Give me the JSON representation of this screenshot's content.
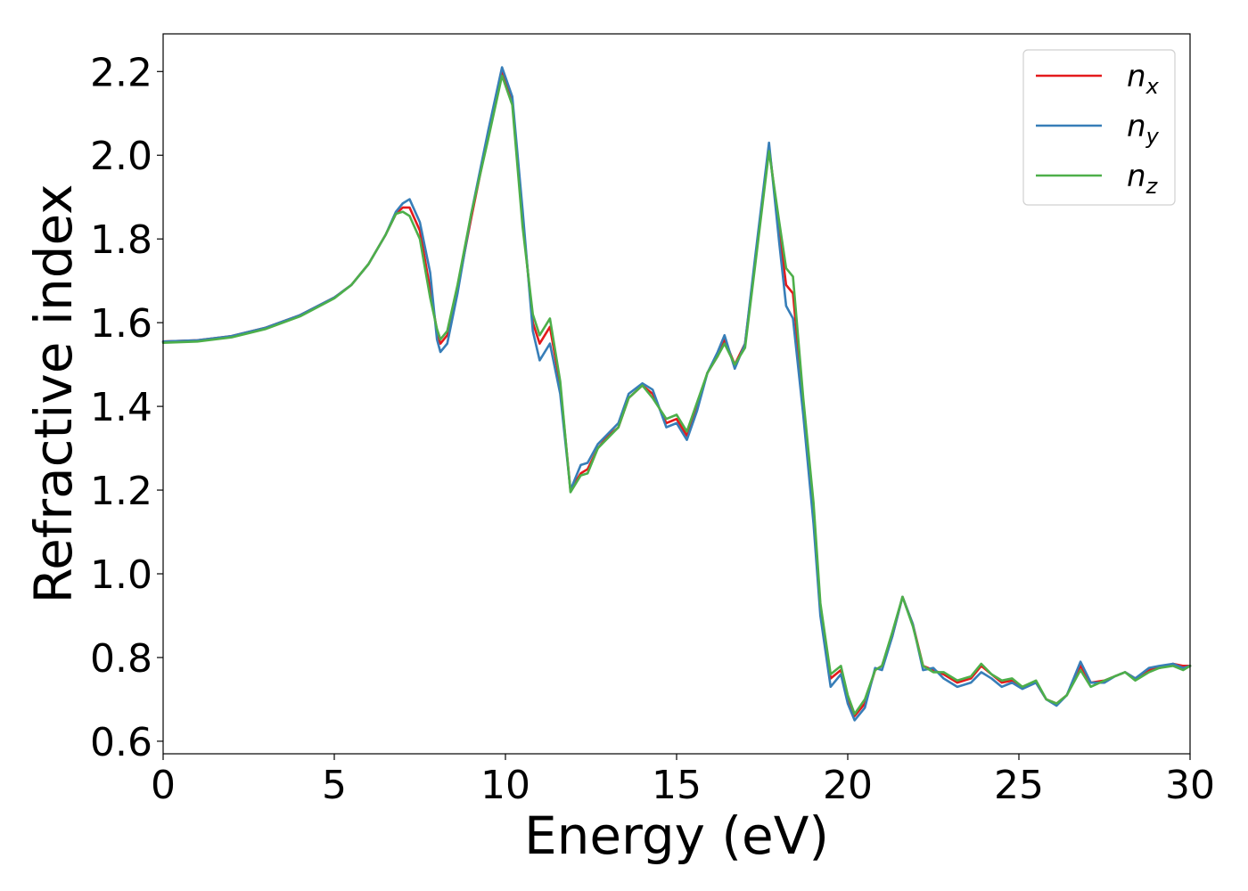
{
  "chart_data": {
    "type": "line",
    "title": "",
    "xlabel": "Energy (eV)",
    "ylabel": "Refractive index",
    "xlim": [
      0,
      30
    ],
    "ylim": [
      0.57,
      2.29
    ],
    "xticks": [
      0,
      5,
      10,
      15,
      20,
      25,
      30
    ],
    "xtick_labels": [
      "0",
      "5",
      "10",
      "15",
      "20",
      "25",
      "30"
    ],
    "yticks": [
      0.6,
      0.8,
      1.0,
      1.2,
      1.4,
      1.6,
      1.8,
      2.0,
      2.2
    ],
    "ytick_labels": [
      "0.6",
      "0.8",
      "1.0",
      "1.2",
      "1.4",
      "1.6",
      "1.8",
      "2.0",
      "2.2"
    ],
    "grid": false,
    "legend_position": "top-right",
    "series": [
      {
        "name": "n_x",
        "label_base": "n",
        "label_sub": "x",
        "color": "#e41a1c",
        "x": [
          0,
          1,
          2,
          3,
          4,
          5,
          5.5,
          6,
          6.5,
          6.8,
          7.0,
          7.2,
          7.5,
          7.8,
          8.0,
          8.1,
          8.3,
          8.6,
          9.0,
          9.5,
          9.9,
          10.2,
          10.5,
          10.8,
          11.0,
          11.3,
          11.6,
          11.9,
          12.2,
          12.4,
          12.7,
          13.0,
          13.3,
          13.6,
          14.0,
          14.3,
          14.7,
          15.0,
          15.3,
          15.6,
          15.9,
          16.2,
          16.4,
          16.7,
          17.0,
          17.3,
          17.7,
          18.0,
          18.2,
          18.4,
          18.7,
          19.0,
          19.2,
          19.5,
          19.8,
          20.0,
          20.2,
          20.5,
          20.8,
          21.0,
          21.3,
          21.6,
          21.9,
          22.2,
          22.5,
          22.8,
          23.2,
          23.6,
          23.9,
          24.2,
          24.5,
          24.8,
          25.1,
          25.5,
          25.8,
          26.1,
          26.4,
          26.8,
          27.1,
          27.5,
          27.8,
          28.1,
          28.4,
          28.8,
          29.1,
          29.5,
          29.8,
          30
        ],
        "values": [
          1.555,
          1.558,
          1.568,
          1.588,
          1.618,
          1.66,
          1.69,
          1.74,
          1.81,
          1.86,
          1.875,
          1.875,
          1.82,
          1.68,
          1.58,
          1.55,
          1.57,
          1.68,
          1.85,
          2.05,
          2.2,
          2.13,
          1.85,
          1.6,
          1.55,
          1.59,
          1.45,
          1.2,
          1.24,
          1.25,
          1.3,
          1.33,
          1.35,
          1.42,
          1.45,
          1.43,
          1.36,
          1.37,
          1.33,
          1.4,
          1.48,
          1.52,
          1.56,
          1.5,
          1.55,
          1.75,
          2.02,
          1.82,
          1.69,
          1.67,
          1.4,
          1.15,
          0.92,
          0.75,
          0.77,
          0.7,
          0.66,
          0.69,
          0.77,
          0.78,
          0.85,
          0.945,
          0.88,
          0.78,
          0.77,
          0.76,
          0.74,
          0.75,
          0.78,
          0.76,
          0.74,
          0.745,
          0.73,
          0.74,
          0.7,
          0.69,
          0.71,
          0.78,
          0.74,
          0.745,
          0.755,
          0.765,
          0.75,
          0.77,
          0.775,
          0.785,
          0.78,
          0.78
        ]
      },
      {
        "name": "n_y",
        "label_base": "n",
        "label_sub": "y",
        "color": "#377eb8",
        "x": [
          0,
          1,
          2,
          3,
          4,
          5,
          5.5,
          6,
          6.5,
          6.8,
          7.0,
          7.2,
          7.5,
          7.8,
          8.0,
          8.1,
          8.3,
          8.6,
          9.0,
          9.5,
          9.9,
          10.2,
          10.5,
          10.8,
          11.0,
          11.3,
          11.6,
          11.9,
          12.2,
          12.4,
          12.7,
          13.0,
          13.3,
          13.6,
          14.0,
          14.3,
          14.7,
          15.0,
          15.3,
          15.6,
          15.9,
          16.2,
          16.4,
          16.7,
          17.0,
          17.3,
          17.7,
          18.0,
          18.2,
          18.4,
          18.7,
          19.0,
          19.2,
          19.5,
          19.8,
          20.0,
          20.2,
          20.5,
          20.8,
          21.0,
          21.3,
          21.6,
          21.9,
          22.2,
          22.5,
          22.8,
          23.2,
          23.6,
          23.9,
          24.2,
          24.5,
          24.8,
          25.1,
          25.5,
          25.8,
          26.1,
          26.4,
          26.8,
          27.1,
          27.5,
          27.8,
          28.1,
          28.4,
          28.8,
          29.1,
          29.5,
          29.8,
          30
        ],
        "values": [
          1.555,
          1.558,
          1.568,
          1.588,
          1.618,
          1.66,
          1.69,
          1.74,
          1.81,
          1.865,
          1.885,
          1.895,
          1.84,
          1.72,
          1.56,
          1.53,
          1.55,
          1.67,
          1.86,
          2.06,
          2.21,
          2.14,
          1.87,
          1.58,
          1.51,
          1.55,
          1.43,
          1.2,
          1.26,
          1.265,
          1.31,
          1.335,
          1.36,
          1.43,
          1.455,
          1.44,
          1.35,
          1.36,
          1.32,
          1.39,
          1.48,
          1.53,
          1.57,
          1.49,
          1.55,
          1.76,
          2.03,
          1.79,
          1.64,
          1.61,
          1.38,
          1.12,
          0.9,
          0.73,
          0.76,
          0.69,
          0.65,
          0.68,
          0.775,
          0.77,
          0.85,
          0.945,
          0.88,
          0.77,
          0.775,
          0.75,
          0.73,
          0.74,
          0.765,
          0.75,
          0.73,
          0.74,
          0.725,
          0.74,
          0.7,
          0.685,
          0.71,
          0.79,
          0.74,
          0.74,
          0.755,
          0.765,
          0.75,
          0.775,
          0.78,
          0.785,
          0.775,
          0.78
        ]
      },
      {
        "name": "n_z",
        "label_base": "n",
        "label_sub": "z",
        "color": "#4daf4a",
        "x": [
          0,
          1,
          2,
          3,
          4,
          5,
          5.5,
          6,
          6.5,
          6.8,
          7.0,
          7.2,
          7.5,
          7.8,
          8.0,
          8.1,
          8.3,
          8.6,
          9.0,
          9.5,
          9.9,
          10.2,
          10.5,
          10.8,
          11.0,
          11.3,
          11.6,
          11.9,
          12.2,
          12.4,
          12.7,
          13.0,
          13.3,
          13.6,
          14.0,
          14.3,
          14.7,
          15.0,
          15.3,
          15.6,
          15.9,
          16.2,
          16.4,
          16.7,
          17.0,
          17.3,
          17.7,
          18.0,
          18.2,
          18.4,
          18.7,
          19.0,
          19.2,
          19.5,
          19.8,
          20.0,
          20.2,
          20.5,
          20.8,
          21.0,
          21.3,
          21.6,
          21.9,
          22.2,
          22.5,
          22.8,
          23.2,
          23.6,
          23.9,
          24.2,
          24.5,
          24.8,
          25.1,
          25.5,
          25.8,
          26.1,
          26.4,
          26.8,
          27.1,
          27.5,
          27.8,
          28.1,
          28.4,
          28.8,
          29.1,
          29.5,
          29.8,
          30
        ],
        "values": [
          1.552,
          1.555,
          1.565,
          1.585,
          1.615,
          1.658,
          1.69,
          1.74,
          1.81,
          1.86,
          1.865,
          1.855,
          1.8,
          1.66,
          1.585,
          1.56,
          1.58,
          1.69,
          1.86,
          2.04,
          2.19,
          2.12,
          1.83,
          1.62,
          1.57,
          1.61,
          1.46,
          1.195,
          1.235,
          1.24,
          1.3,
          1.325,
          1.35,
          1.42,
          1.45,
          1.42,
          1.37,
          1.38,
          1.34,
          1.41,
          1.48,
          1.52,
          1.55,
          1.5,
          1.54,
          1.74,
          2.01,
          1.84,
          1.73,
          1.71,
          1.42,
          1.17,
          0.93,
          0.76,
          0.78,
          0.71,
          0.665,
          0.7,
          0.77,
          0.78,
          0.86,
          0.945,
          0.875,
          0.78,
          0.765,
          0.765,
          0.745,
          0.755,
          0.785,
          0.76,
          0.745,
          0.75,
          0.73,
          0.745,
          0.7,
          0.69,
          0.71,
          0.77,
          0.73,
          0.745,
          0.755,
          0.765,
          0.745,
          0.765,
          0.775,
          0.78,
          0.77,
          0.78
        ]
      }
    ]
  }
}
